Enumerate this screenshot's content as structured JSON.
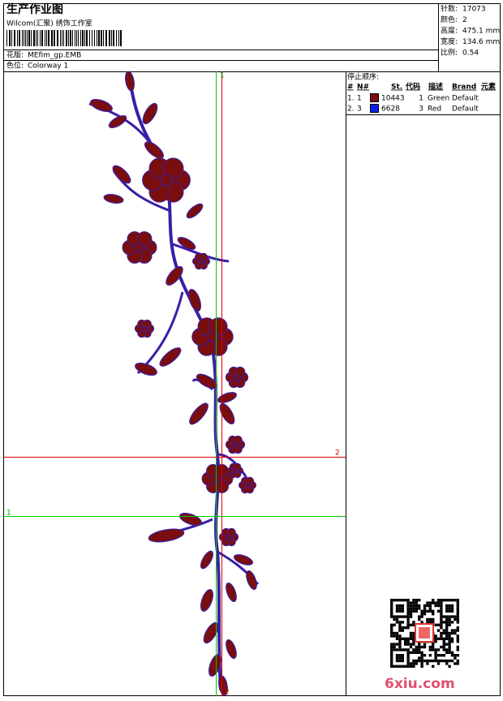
{
  "header": {
    "title": "生产作业图",
    "subtitle": "Wilcom(汇聚) 绣饰工作室",
    "design_label": "花版:",
    "design_value": "MEfim_gp.EMB",
    "colorway_label": "色位:",
    "colorway_value": "Colorway 1"
  },
  "stats": [
    {
      "label": "针数:",
      "value": "17073"
    },
    {
      "label": "颜色:",
      "value": "2"
    },
    {
      "label": "高度:",
      "value": "475.1 mm"
    },
    {
      "label": "宽度:",
      "value": "134.6 mm"
    },
    {
      "label": "比例:",
      "value": "0.54"
    }
  ],
  "stop_sequence": {
    "title": "停止顺序:",
    "columns": [
      "#",
      "N#",
      "St.",
      "代码",
      "描述",
      "Brand",
      "元素"
    ],
    "rows": [
      {
        "index": "1.",
        "needle": "1",
        "color": "#7a0d0d",
        "stitches": "10443",
        "code": "1",
        "description": "Green",
        "brand": "Default"
      },
      {
        "index": "2.",
        "needle": "3",
        "color": "#0a1ee6",
        "stitches": "6628",
        "code": "3",
        "description": "Red",
        "brand": "Default"
      }
    ]
  },
  "guides": {
    "vertical_top": "1",
    "vertical_bottom": "2",
    "horizontal_red": "2",
    "horizontal_green": "1"
  },
  "watermark": "6xiu.com"
}
